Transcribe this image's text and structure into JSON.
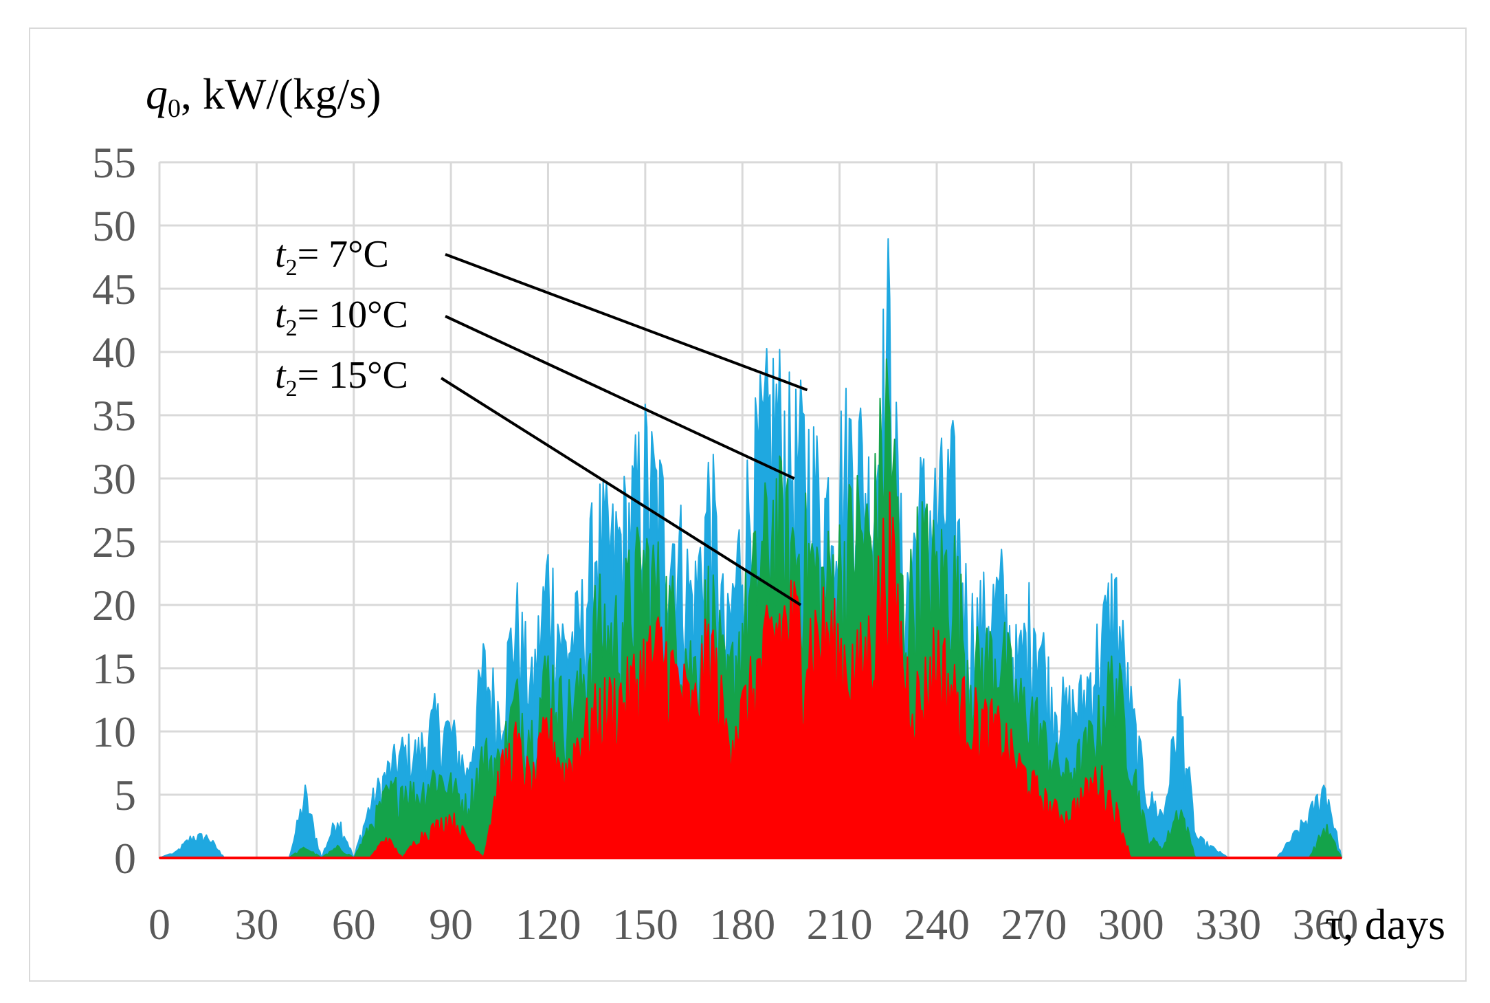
{
  "chart_data": {
    "type": "area",
    "title": "",
    "ylabel": {
      "var": "q",
      "sub": "0",
      "rest": ", kW/(kg/s)"
    },
    "xlabel": "τ, days",
    "xlim": [
      0,
      365
    ],
    "ylim": [
      0,
      55
    ],
    "x_ticks": [
      "0",
      "30",
      "60",
      "90",
      "120",
      "150",
      "180",
      "210",
      "240",
      "270",
      "300",
      "330",
      "360"
    ],
    "y_ticks": [
      "0",
      "5",
      "10",
      "15",
      "20",
      "25",
      "30",
      "35",
      "40",
      "45",
      "50",
      "55"
    ],
    "grid": true,
    "colors": {
      "t7": "#1fa8e0",
      "t10": "#14a34a",
      "t15": "#ff0000",
      "grid": "#d9d9d9"
    },
    "annotations": [
      {
        "var": "t",
        "sub": "2",
        "rest": "= 7°C",
        "series": "t7",
        "target": [
          200,
          37
        ]
      },
      {
        "var": "t",
        "sub": "2",
        "rest": "= 10°C",
        "series": "t10",
        "target": [
          196,
          30
        ]
      },
      {
        "var": "t",
        "sub": "2",
        "rest": "= 15°C",
        "series": "t15",
        "target": [
          198,
          20
        ]
      }
    ],
    "series": [
      {
        "id": "t7",
        "x": [
          0,
          5,
          10,
          15,
          20,
          30,
          40,
          45,
          50,
          55,
          60,
          65,
          70,
          75,
          80,
          85,
          90,
          95,
          100,
          105,
          110,
          115,
          120,
          125,
          130,
          135,
          140,
          145,
          150,
          155,
          160,
          165,
          170,
          175,
          180,
          185,
          190,
          195,
          200,
          205,
          210,
          215,
          220,
          225,
          230,
          235,
          240,
          245,
          250,
          255,
          260,
          265,
          270,
          275,
          280,
          285,
          290,
          295,
          300,
          305,
          310,
          315,
          320,
          330,
          340,
          345,
          350,
          355,
          360,
          365
        ],
        "values": [
          0,
          0.5,
          2,
          2,
          0,
          0,
          0,
          6,
          0,
          4,
          0,
          5,
          8,
          10,
          10,
          13,
          12,
          8,
          18,
          14,
          23,
          16,
          27,
          20,
          22,
          31,
          29,
          32,
          37,
          33,
          30,
          24,
          35,
          20,
          31,
          38,
          43,
          38,
          38,
          33,
          37,
          40,
          33,
          50,
          24,
          33,
          33,
          35,
          22,
          23,
          25,
          18,
          24,
          16,
          14,
          15,
          20,
          25,
          14,
          6,
          4,
          15,
          2,
          0,
          0,
          0,
          2,
          4,
          7,
          0
        ],
        "max": [
          0.5,
          2,
          2,
          6,
          4,
          5,
          10,
          13,
          12,
          18,
          23,
          27,
          22,
          31,
          29,
          37,
          35,
          43,
          38,
          40,
          50,
          34,
          35,
          25,
          24,
          16,
          25,
          15,
          2,
          7
        ]
      },
      {
        "id": "t10",
        "x": [
          0,
          40,
          45,
          50,
          55,
          60,
          65,
          70,
          75,
          80,
          85,
          90,
          95,
          100,
          105,
          110,
          115,
          120,
          125,
          130,
          135,
          140,
          145,
          150,
          155,
          160,
          165,
          170,
          175,
          180,
          185,
          190,
          195,
          200,
          205,
          210,
          215,
          220,
          225,
          230,
          235,
          240,
          245,
          250,
          255,
          260,
          265,
          270,
          275,
          280,
          285,
          290,
          295,
          300,
          305,
          310,
          315,
          320,
          355,
          360,
          365
        ],
        "values": [
          0,
          0,
          1,
          0,
          1,
          0,
          3,
          6,
          7,
          6,
          8,
          7,
          5,
          10,
          9,
          15,
          12,
          18,
          14,
          16,
          23,
          21,
          25,
          28,
          25,
          22,
          18,
          25,
          16,
          22,
          28,
          33,
          30,
          29,
          26,
          28,
          32,
          30,
          44,
          22,
          30,
          27,
          28,
          18,
          19,
          20,
          15,
          14,
          10,
          8,
          10,
          13,
          18,
          10,
          2,
          1,
          5,
          0,
          0,
          3,
          0
        ]
      },
      {
        "id": "t15",
        "x": [
          0,
          60,
          65,
          70,
          75,
          80,
          85,
          90,
          95,
          100,
          105,
          110,
          115,
          120,
          125,
          130,
          135,
          140,
          145,
          150,
          155,
          160,
          165,
          170,
          175,
          180,
          185,
          190,
          195,
          200,
          205,
          210,
          215,
          220,
          225,
          230,
          235,
          240,
          245,
          250,
          255,
          260,
          265,
          270,
          275,
          280,
          285,
          290,
          295,
          300,
          365
        ],
        "values": [
          0,
          0,
          0,
          2,
          0,
          2,
          3,
          4,
          2,
          0,
          8,
          11,
          7,
          13,
          8,
          12,
          14,
          15,
          16,
          19,
          20,
          17,
          14,
          21,
          12,
          14,
          18,
          22,
          23,
          21,
          22,
          20,
          18,
          21,
          31,
          18,
          15,
          20,
          16,
          14,
          13,
          12,
          9,
          7,
          5,
          4,
          6,
          8,
          5,
          0,
          0
        ]
      }
    ]
  }
}
